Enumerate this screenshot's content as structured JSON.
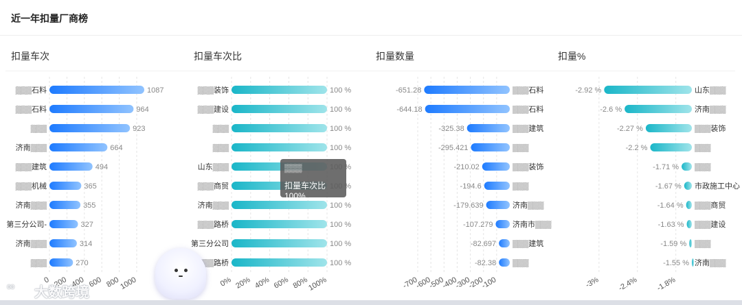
{
  "header": {
    "title": "近一年扣量厂商榜"
  },
  "tooltip": {
    "name": "▒▒▒",
    "line": "扣量车次比 100%"
  },
  "watermark": {
    "logo": "∞",
    "text": "大数跨境"
  },
  "colors": {
    "blue_start": "#1e7bff",
    "blue_end": "#90c3ff",
    "teal_start": "#1ab6c8",
    "teal_end": "#9fe4ea",
    "grid": "#e4e4e4",
    "label": "#333333",
    "value": "#888888"
  },
  "chart_data": [
    {
      "type": "bar",
      "orientation": "horizontal",
      "title": "扣量车次",
      "categories": [
        "▒▒▒石料",
        "▒▒▒石料",
        "▒▒▒",
        "济南▒▒▒",
        "▒▒▒建筑",
        "▒▒▒机械",
        "济南▒▒▒",
        "第三分公司-",
        "济南▒▒▒",
        "▒▒▒"
      ],
      "values": [
        1087,
        964,
        923,
        664,
        494,
        365,
        355,
        327,
        314,
        270
      ],
      "value_labels": [
        "1087",
        "964",
        "923",
        "664",
        "494",
        "365",
        "355",
        "327",
        "314",
        "270"
      ],
      "xlim": [
        0,
        1087
      ],
      "ticks": [
        0,
        200,
        400,
        600,
        800,
        1000
      ],
      "tick_labels": [
        "0",
        "200",
        "400",
        "600",
        "800",
        "1000"
      ],
      "grid": true,
      "color": "blue"
    },
    {
      "type": "bar",
      "orientation": "horizontal",
      "title": "扣量车次比",
      "categories": [
        "▒▒▒装饰",
        "▒▒▒建设",
        "▒▒▒",
        "▒▒▒",
        "山东▒▒▒",
        "▒▒▒商贸",
        "济南▒▒▒",
        "▒▒▒路桥",
        "第三分公司",
        "▒▒▒路桥"
      ],
      "values": [
        100,
        100,
        100,
        100,
        100,
        100,
        100,
        100,
        100,
        100
      ],
      "value_labels": [
        "100 %",
        "100 %",
        "100 %",
        "100 %",
        "100 %",
        "100 %",
        "100 %",
        "100 %",
        "100 %",
        "100 %"
      ],
      "xlim": [
        0,
        100
      ],
      "ticks": [
        0,
        20,
        40,
        60,
        80,
        100
      ],
      "tick_labels": [
        "0%",
        "20%",
        "40%",
        "60%",
        "80%",
        "100%"
      ],
      "grid": true,
      "color": "teal"
    },
    {
      "type": "bar",
      "orientation": "horizontal",
      "title": "扣量数量",
      "categories": [
        "▒▒▒石料",
        "▒▒▒石料",
        "▒▒▒建筑",
        "▒▒▒",
        "▒▒▒装饰",
        "▒▒▒",
        "济南▒▒▒",
        "济南市▒▒▒",
        "▒▒▒建筑",
        "▒▒▒"
      ],
      "values": [
        -651.28,
        -644.18,
        -325.38,
        -295.421,
        -210.02,
        -194.6,
        -179.639,
        -107.279,
        -82.697,
        -82.38
      ],
      "value_labels": [
        "-651.28",
        "-644.18",
        "-325.38",
        "-295.421",
        "-210.02",
        "-194.6",
        "-179.639",
        "-107.279",
        "-82.697",
        "-82.38"
      ],
      "xlim": [
        -700,
        0
      ],
      "ticks": [
        -700,
        -600,
        -500,
        -400,
        -300,
        -200,
        -100
      ],
      "tick_labels": [
        "-700",
        "-600",
        "-500",
        "-400",
        "-300",
        "-200",
        "-100"
      ],
      "grid": true,
      "color": "blue"
    },
    {
      "type": "bar",
      "orientation": "horizontal",
      "title": "扣量%",
      "categories": [
        "山东▒▒▒",
        "济南▒▒▒",
        "▒▒▒装饰",
        "▒▒▒",
        "▒▒▒",
        "市政施工中心",
        "▒▒▒商贸",
        "▒▒▒建设",
        "▒▒▒",
        "济南▒▒▒"
      ],
      "values": [
        -2.92,
        -2.6,
        -2.27,
        -2.2,
        -1.71,
        -1.67,
        -1.64,
        -1.63,
        -1.59,
        -1.55
      ],
      "value_labels": [
        "-2.92 %",
        "-2.6 %",
        "-2.27 %",
        "-2.2 %",
        "-1.71 %",
        "-1.67 %",
        "-1.64 %",
        "-1.63 %",
        "-1.59 %",
        "-1.55 %"
      ],
      "xlim": [
        -3.02,
        -1.55
      ],
      "ticks": [
        -3,
        -2.4,
        -1.8
      ],
      "tick_labels": [
        "-3%",
        "-2.4%",
        "-1.8%"
      ],
      "grid": true,
      "color": "teal"
    }
  ]
}
